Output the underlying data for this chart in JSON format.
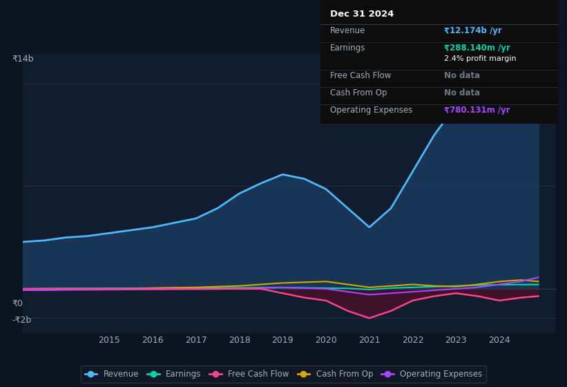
{
  "bg_color": "#0d1421",
  "chart_bg": "#0d1421",
  "plot_bg": "#111c2e",
  "years": [
    2013.0,
    2013.5,
    2014.0,
    2014.5,
    2015.0,
    2015.5,
    2016.0,
    2016.5,
    2017.0,
    2017.5,
    2018.0,
    2018.5,
    2019.0,
    2019.5,
    2020.0,
    2020.5,
    2021.0,
    2021.5,
    2022.0,
    2022.5,
    2023.0,
    2023.5,
    2024.0,
    2024.5,
    2024.9
  ],
  "revenue": [
    3.2,
    3.3,
    3.5,
    3.6,
    3.8,
    4.0,
    4.2,
    4.5,
    4.8,
    5.5,
    6.5,
    7.2,
    7.8,
    7.5,
    6.8,
    5.5,
    4.2,
    5.5,
    8.0,
    10.5,
    12.5,
    13.5,
    13.8,
    13.5,
    12.2
  ],
  "earnings": [
    0.0,
    0.02,
    0.03,
    0.03,
    0.04,
    0.04,
    0.05,
    0.05,
    0.05,
    0.06,
    0.07,
    0.08,
    0.08,
    0.07,
    0.05,
    0.03,
    -0.05,
    0.05,
    0.1,
    0.15,
    0.2,
    0.25,
    0.28,
    0.29,
    0.288
  ],
  "free_cash_flow": [
    0.0,
    0.0,
    0.0,
    0.0,
    0.0,
    0.0,
    0.0,
    0.0,
    0.0,
    0.0,
    0.0,
    0.0,
    -0.3,
    -0.6,
    -0.8,
    -1.5,
    -2.0,
    -1.5,
    -0.8,
    -0.5,
    -0.3,
    -0.5,
    -0.8,
    -0.6,
    -0.5
  ],
  "cash_from_op": [
    -0.05,
    -0.04,
    -0.03,
    -0.02,
    -0.01,
    0.0,
    0.05,
    0.08,
    0.1,
    0.15,
    0.2,
    0.3,
    0.4,
    0.45,
    0.5,
    0.3,
    0.1,
    0.2,
    0.3,
    0.2,
    0.15,
    0.3,
    0.5,
    0.6,
    0.5
  ],
  "op_expenses": [
    -0.1,
    -0.1,
    -0.08,
    -0.07,
    -0.06,
    -0.05,
    -0.04,
    -0.03,
    -0.02,
    -0.01,
    0.0,
    0.05,
    0.1,
    0.05,
    0.0,
    -0.2,
    -0.4,
    -0.3,
    -0.2,
    -0.1,
    0.0,
    0.1,
    0.3,
    0.5,
    0.78
  ],
  "revenue_color": "#4db8ff",
  "revenue_fill": "#1a3a5c",
  "earnings_color": "#00d4aa",
  "free_cash_flow_color": "#ff4488",
  "free_cash_flow_fill": "#4a1028",
  "cash_from_op_color": "#d4a800",
  "op_expenses_color": "#aa44ff",
  "grid_color": "#2a3a4a",
  "text_color": "#a0b0c0",
  "ylabel_top": "₹14b",
  "ylabel_zero": "₹0",
  "ylabel_bottom": "-₹2b",
  "ytick_positions": [
    14,
    0,
    -2
  ],
  "ylim": [
    -3.0,
    16.0
  ],
  "xlim": [
    2013.0,
    2025.3
  ],
  "xticks": [
    2015,
    2016,
    2017,
    2018,
    2019,
    2020,
    2021,
    2022,
    2023,
    2024
  ],
  "info_box": {
    "title": "Dec 31 2024",
    "rows": [
      {
        "label": "Revenue",
        "value": "₹12.174b /yr",
        "value_color": "#4db8ff",
        "sub": null
      },
      {
        "label": "Earnings",
        "value": "₹288.140m /yr",
        "value_color": "#00d4aa",
        "sub": "2.4% profit margin"
      },
      {
        "label": "Free Cash Flow",
        "value": "No data",
        "value_color": "#6a7a8a",
        "sub": null
      },
      {
        "label": "Cash From Op",
        "value": "No data",
        "value_color": "#6a7a8a",
        "sub": null
      },
      {
        "label": "Operating Expenses",
        "value": "₹780.131m /yr",
        "value_color": "#aa44ff",
        "sub": null
      }
    ]
  },
  "legend_items": [
    {
      "label": "Revenue",
      "color": "#4db8ff"
    },
    {
      "label": "Earnings",
      "color": "#00d4aa"
    },
    {
      "label": "Free Cash Flow",
      "color": "#ff4488"
    },
    {
      "label": "Cash From Op",
      "color": "#d4a800"
    },
    {
      "label": "Operating Expenses",
      "color": "#aa44ff"
    }
  ]
}
